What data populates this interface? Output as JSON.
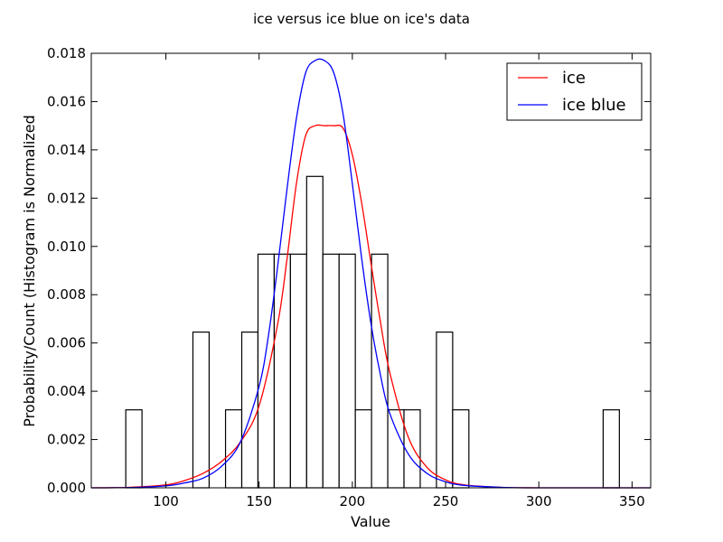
{
  "chart_data": {
    "type": "histogram",
    "title": "ice versus ice blue on ice's data",
    "xlabel": "Value",
    "ylabel": "Probability/Count (Histogram is Normalized",
    "xlim": [
      60,
      360
    ],
    "ylim": [
      0,
      0.018
    ],
    "x_ticks": [
      "100",
      "150",
      "200",
      "250",
      "300",
      "350"
    ],
    "y_ticks": [
      "0.000",
      "0.002",
      "0.004",
      "0.006",
      "0.008",
      "0.010",
      "0.012",
      "0.014",
      "0.016",
      "0.018"
    ],
    "histogram": {
      "bin_width": 8.7,
      "bins": [
        {
          "x0": 78.5,
          "value": 0.00323
        },
        {
          "x0": 114.5,
          "value": 0.00645
        },
        {
          "x0": 132.0,
          "value": 0.00323
        },
        {
          "x0": 140.7,
          "value": 0.00645
        },
        {
          "x0": 149.4,
          "value": 0.00968
        },
        {
          "x0": 158.1,
          "value": 0.00968
        },
        {
          "x0": 166.8,
          "value": 0.00968
        },
        {
          "x0": 175.5,
          "value": 0.0129
        },
        {
          "x0": 184.2,
          "value": 0.00968
        },
        {
          "x0": 192.9,
          "value": 0.00968
        },
        {
          "x0": 201.6,
          "value": 0.00323
        },
        {
          "x0": 210.3,
          "value": 0.00968
        },
        {
          "x0": 219.0,
          "value": 0.00323
        },
        {
          "x0": 227.7,
          "value": 0.00323
        },
        {
          "x0": 245.1,
          "value": 0.00645
        },
        {
          "x0": 253.8,
          "value": 0.00323
        },
        {
          "x0": 334.5,
          "value": 0.00323
        }
      ]
    },
    "series": [
      {
        "name": "ice",
        "color": "#ff0000",
        "x": [
          60,
          80,
          100,
          110,
          120,
          130,
          140,
          150,
          160,
          165,
          170,
          175,
          180,
          185,
          190,
          195,
          200,
          205,
          210,
          215,
          220,
          230,
          240,
          250,
          260,
          280,
          300,
          330,
          360
        ],
        "y": [
          0.0,
          2e-05,
          0.00012,
          0.0003,
          0.0006,
          0.0011,
          0.0019,
          0.0034,
          0.0068,
          0.0095,
          0.0126,
          0.0146,
          0.015,
          0.015,
          0.015,
          0.0149,
          0.0138,
          0.0118,
          0.0093,
          0.0069,
          0.0048,
          0.0021,
          0.00085,
          0.00033,
          0.00012,
          2e-05,
          0.0,
          0.0,
          0.0
        ]
      },
      {
        "name": "ice blue",
        "color": "#0000ff",
        "x": [
          60,
          80,
          100,
          110,
          120,
          130,
          140,
          150,
          155,
          160,
          165,
          170,
          175,
          180,
          185,
          190,
          195,
          200,
          205,
          210,
          215,
          220,
          230,
          240,
          250,
          260,
          280,
          300,
          330,
          360
        ],
        "y": [
          0.0,
          1e-05,
          8e-05,
          0.0002,
          0.0004,
          0.0009,
          0.0019,
          0.0042,
          0.0063,
          0.0092,
          0.0124,
          0.0153,
          0.0172,
          0.0177,
          0.0177,
          0.0172,
          0.0155,
          0.0126,
          0.0095,
          0.0068,
          0.0047,
          0.0031,
          0.0014,
          0.0006,
          0.00025,
          0.0001,
          2e-05,
          0.0,
          0.0,
          0.0
        ]
      }
    ],
    "legend": {
      "position": "top-right",
      "entries": [
        "ice",
        "ice blue"
      ]
    },
    "grid": false
  }
}
